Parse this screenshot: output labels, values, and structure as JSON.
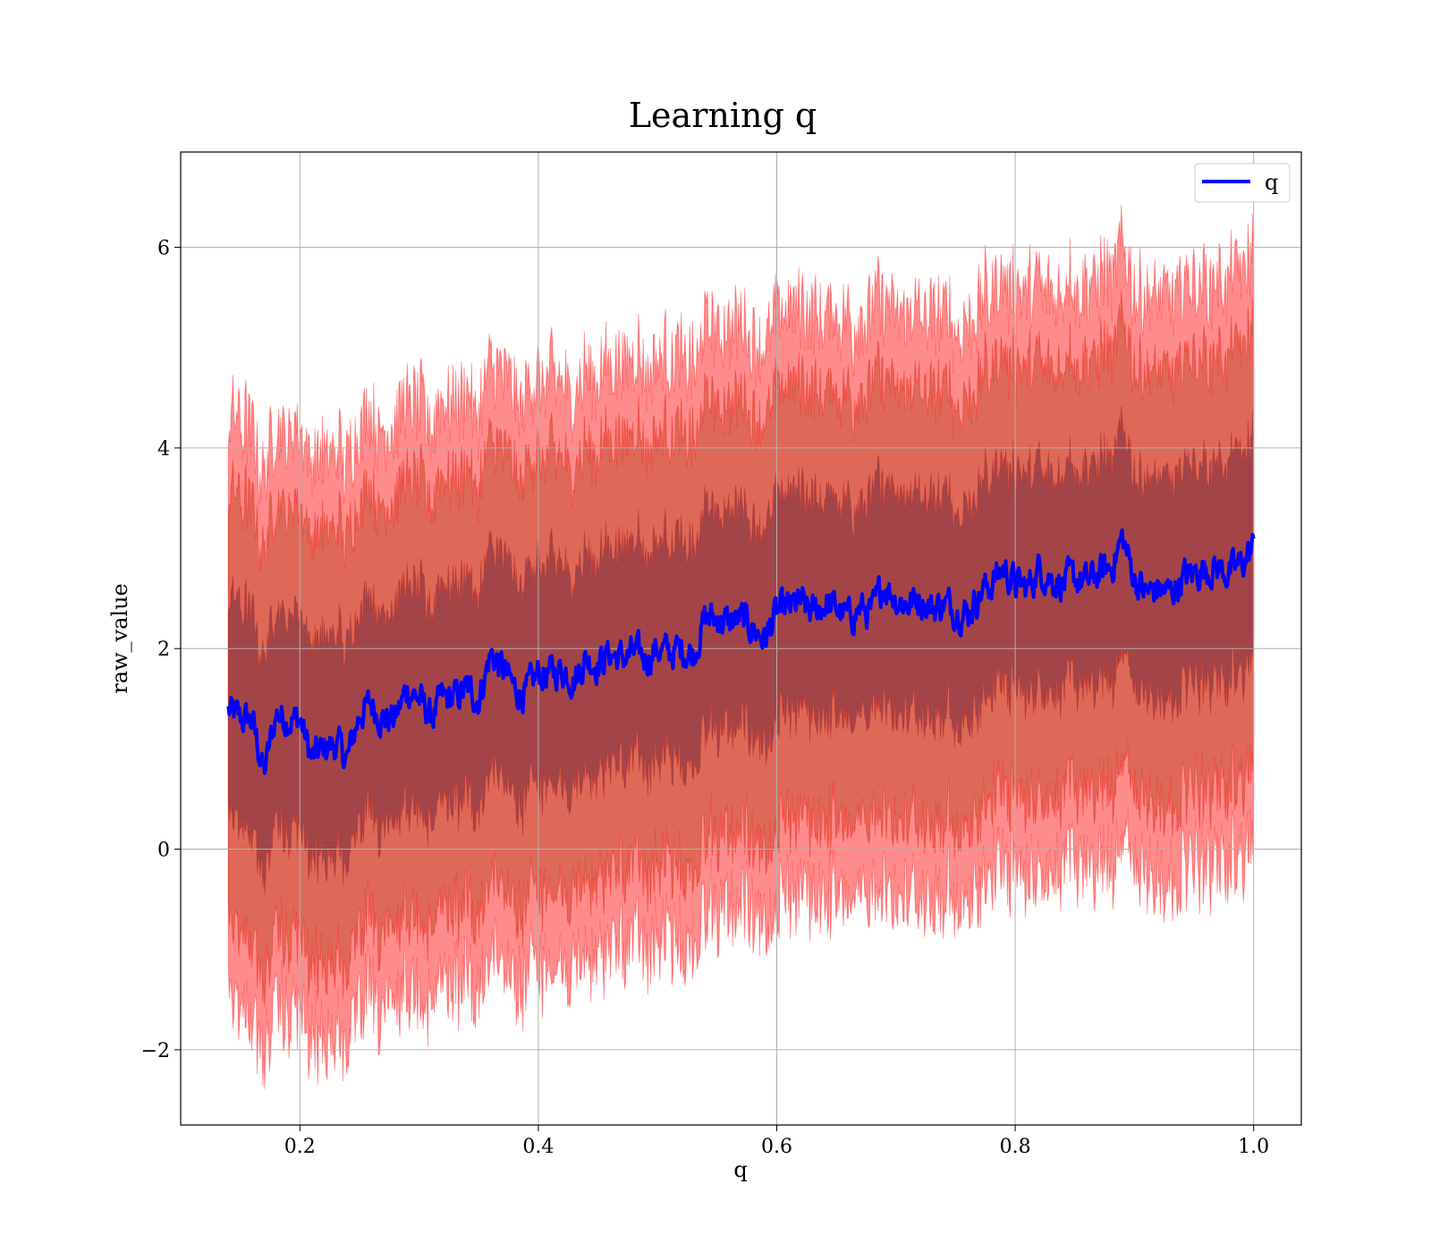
{
  "chart_data": {
    "type": "line",
    "title": "Learning q",
    "xlabel": "q",
    "ylabel": "raw_value",
    "xlim": [
      0.1,
      1.04
    ],
    "ylim": [
      -2.75,
      6.95
    ],
    "x_ticks": [
      0.2,
      0.4,
      0.6,
      0.8,
      1.0
    ],
    "x_tick_labels": [
      "0.2",
      "0.4",
      "0.6",
      "0.8",
      "1.0"
    ],
    "y_ticks": [
      -2,
      0,
      2,
      4,
      6
    ],
    "y_tick_labels": [
      "−2",
      "0",
      "2",
      "4",
      "6"
    ],
    "grid": true,
    "legend": {
      "position": "top-right",
      "entries": [
        {
          "label": "q",
          "color": "#0000ff"
        }
      ]
    },
    "colors": {
      "line": "#0000ff",
      "band": "#ff0000",
      "inner_tint": "#4a2060"
    },
    "band_half_widths": [
      1.1,
      2.15,
      2.9
    ],
    "band_opacity": [
      0.45,
      0.25,
      0.3
    ],
    "series": [
      {
        "name": "q",
        "x": [
          0.14,
          0.15,
          0.16,
          0.17,
          0.18,
          0.19,
          0.2,
          0.21,
          0.22,
          0.23,
          0.24,
          0.25,
          0.26,
          0.27,
          0.28,
          0.29,
          0.3,
          0.31,
          0.32,
          0.33,
          0.34,
          0.35,
          0.36,
          0.37,
          0.38,
          0.39,
          0.4,
          0.41,
          0.42,
          0.43,
          0.44,
          0.45,
          0.46,
          0.47,
          0.48,
          0.49,
          0.5,
          0.51,
          0.52,
          0.53,
          0.54,
          0.55,
          0.56,
          0.57,
          0.58,
          0.59,
          0.6,
          0.61,
          0.62,
          0.63,
          0.64,
          0.65,
          0.66,
          0.67,
          0.68,
          0.69,
          0.7,
          0.71,
          0.72,
          0.73,
          0.74,
          0.75,
          0.76,
          0.77,
          0.78,
          0.79,
          0.8,
          0.81,
          0.82,
          0.83,
          0.84,
          0.85,
          0.86,
          0.87,
          0.88,
          0.89,
          0.9,
          0.91,
          0.92,
          0.93,
          0.94,
          0.95,
          0.96,
          0.97,
          0.98,
          0.99,
          1.0
        ],
        "values": [
          1.38,
          1.3,
          1.28,
          0.75,
          1.35,
          1.3,
          1.3,
          0.9,
          1.0,
          1.05,
          0.9,
          1.35,
          1.45,
          1.3,
          1.3,
          1.6,
          1.5,
          1.3,
          1.5,
          1.5,
          1.6,
          1.5,
          1.95,
          1.8,
          1.6,
          1.55,
          1.75,
          1.75,
          1.8,
          1.7,
          1.9,
          1.85,
          1.95,
          1.9,
          1.95,
          1.9,
          2.0,
          1.95,
          2.0,
          1.95,
          2.3,
          2.3,
          2.25,
          2.3,
          2.2,
          2.1,
          2.35,
          2.4,
          2.45,
          2.35,
          2.45,
          2.4,
          2.3,
          2.4,
          2.35,
          2.65,
          2.5,
          2.45,
          2.5,
          2.4,
          2.45,
          2.4,
          2.35,
          2.55,
          2.65,
          2.8,
          2.65,
          2.6,
          2.8,
          2.7,
          2.65,
          2.7,
          2.65,
          2.75,
          2.8,
          3.1,
          2.7,
          2.55,
          2.6,
          2.55,
          2.7,
          2.75,
          2.8,
          2.8,
          2.75,
          2.85,
          3.0
        ]
      }
    ]
  }
}
